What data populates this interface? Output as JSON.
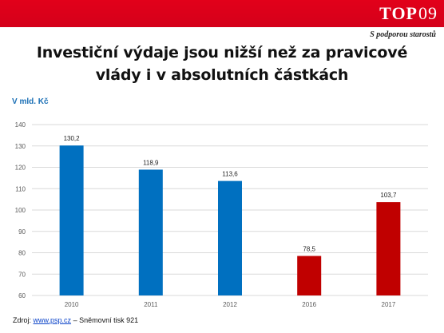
{
  "header": {
    "logo_word": "TOP",
    "logo_number": "09",
    "tagline": "S podporou starostů"
  },
  "title_line1": "Investiční výdaje jsou nižší než za pravicové",
  "title_line2": "vlády i v absolutních částkách",
  "unit_label": "V mld. Kč",
  "source": {
    "prefix": "Zdroj:",
    "link": "www.psp.cz",
    "suffix": "– Sněmovní tisk 921"
  },
  "colors": {
    "accent_red": "#e2001a",
    "bar_blue": "#0070c0",
    "bar_red": "#c00000"
  },
  "chart_data": {
    "type": "bar",
    "categories": [
      "2010",
      "2011",
      "2012",
      "2016",
      "2017"
    ],
    "values": [
      130.2,
      118.9,
      113.6,
      78.5,
      103.7
    ],
    "data_labels": [
      "130,2",
      "118,9",
      "113,6",
      "78,5",
      "103,7"
    ],
    "bar_colors": [
      "#0070c0",
      "#0070c0",
      "#0070c0",
      "#c00000",
      "#c00000"
    ],
    "ylim": [
      60,
      140
    ],
    "yticks": [
      60,
      70,
      80,
      90,
      100,
      110,
      120,
      130,
      140
    ],
    "grid": true,
    "title": "",
    "xlabel": "",
    "ylabel": "V mld. Kč"
  }
}
